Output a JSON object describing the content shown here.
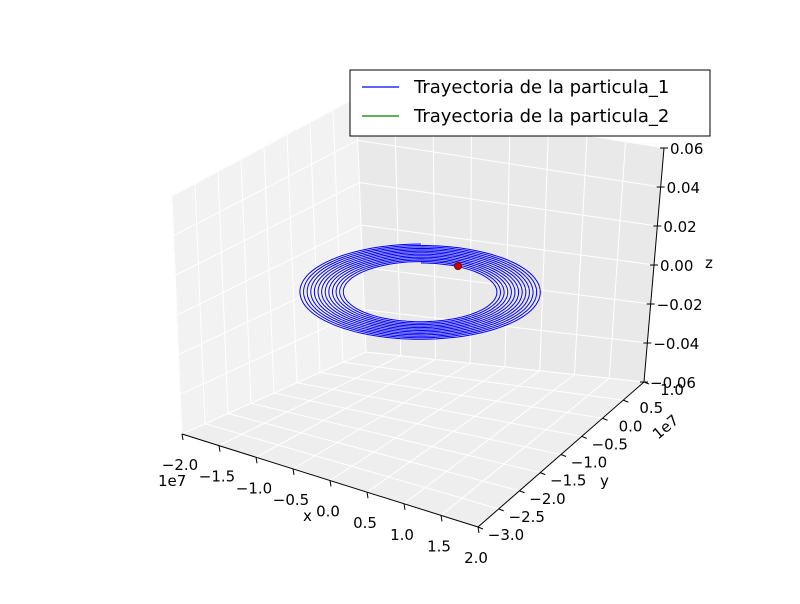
{
  "chart_data": {
    "type": "line",
    "projection": "3d",
    "legend": {
      "placement": "top-right",
      "entries": [
        {
          "label": "Trayectoria de la particula_1",
          "color": "#0000ff"
        },
        {
          "label": "Trayectoria de la particula_2",
          "color": "#008000"
        }
      ]
    },
    "axes": {
      "x": {
        "label": "x",
        "offset_text": "1e7",
        "ticks": [
          "−2.0",
          "−1.5",
          "−1.0",
          "−0.5",
          "0.0",
          "0.5",
          "1.0",
          "1.5",
          "2.0"
        ],
        "range": [
          -20000000.0,
          20000000.0
        ]
      },
      "y": {
        "label": "y",
        "offset_text": "1e7",
        "ticks": [
          "−3.0",
          "−2.5",
          "−2.0",
          "−1.5",
          "−1.0",
          "−0.5",
          "0.0",
          "0.5",
          "1.0"
        ],
        "range": [
          -30000000.0,
          10000000.0
        ]
      },
      "z": {
        "label": "z",
        "ticks": [
          "−0.06",
          "−0.04",
          "−0.02",
          "0.00",
          "0.02",
          "0.04",
          "0.06"
        ],
        "range": [
          -0.06,
          0.06
        ]
      }
    },
    "grid": true,
    "series": [
      {
        "name": "Trayectoria de la particula_1",
        "color": "#0000ff",
        "shape": "planar spiral at z = 0",
        "center": [
          0,
          -10000000.0,
          0
        ],
        "inner_radius": 8500000.0,
        "outer_radius": 15000000.0,
        "turns": 13
      },
      {
        "name": "Trayectoria de la particula_2",
        "color": "#008000",
        "shape": "small cluster near origin",
        "center": [
          0,
          0,
          0
        ]
      }
    ],
    "markers": [
      {
        "name": "particle-marker",
        "color": "#cc0000",
        "position": [
          1000000.0,
          0,
          0
        ]
      }
    ]
  }
}
